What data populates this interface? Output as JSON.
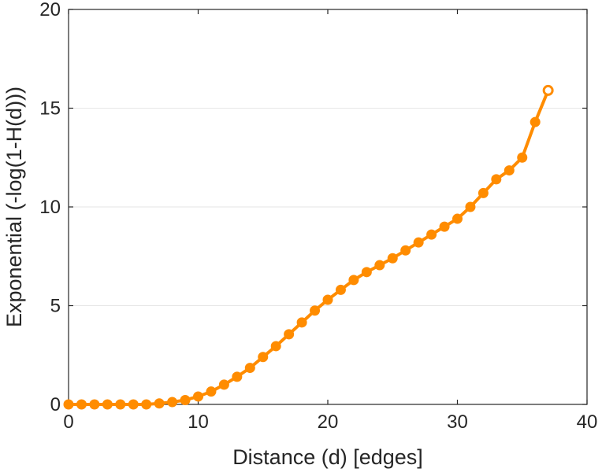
{
  "chart_data": {
    "type": "line",
    "title": "",
    "xlabel": "Distance (d) [edges]",
    "ylabel": "Exponential (-log(1-H(d)))",
    "xlim": [
      0,
      40
    ],
    "ylim": [
      0,
      20
    ],
    "x_ticks": [
      0,
      10,
      20,
      30,
      40
    ],
    "y_ticks": [
      0,
      5,
      10,
      15,
      20
    ],
    "grid": "horizontal",
    "legend": "none",
    "series": [
      {
        "color": "#FF8C00",
        "marker": "circle",
        "x": [
          0,
          1,
          2,
          3,
          4,
          5,
          6,
          7,
          8,
          9,
          10,
          11,
          12,
          13,
          14,
          15,
          16,
          17,
          18,
          19,
          20,
          21,
          22,
          23,
          24,
          25,
          26,
          27,
          28,
          29,
          30,
          31,
          32,
          33,
          34,
          35,
          36,
          37
        ],
        "y": [
          0.0,
          0.0,
          0.0,
          0.0,
          0.0,
          0.0,
          0.0,
          0.05,
          0.12,
          0.22,
          0.4,
          0.65,
          1.0,
          1.4,
          1.85,
          2.4,
          2.95,
          3.55,
          4.15,
          4.75,
          5.3,
          5.8,
          6.3,
          6.7,
          7.05,
          7.4,
          7.8,
          8.2,
          8.6,
          9.0,
          9.4,
          10.0,
          10.7,
          11.4,
          11.85,
          12.5,
          14.3,
          15.9
        ]
      }
    ]
  }
}
